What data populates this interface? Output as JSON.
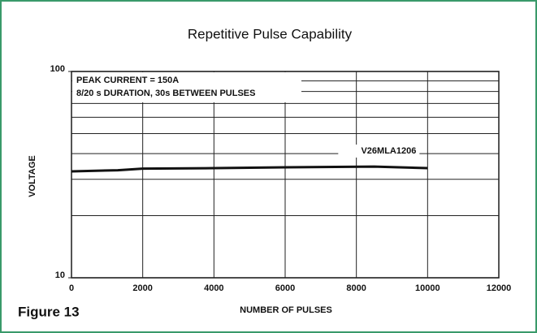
{
  "figure_label": "Figure 13",
  "chart_data": {
    "type": "line",
    "title": "Repetitive Pulse Capability",
    "x_label": "NUMBER OF PULSES",
    "y_label": "VOLTAGE",
    "annotations": [
      "PEAK CURRENT = 150A",
      "8/20  s DURATION, 30s BETWEEN PULSES"
    ],
    "xlim": [
      0,
      12000
    ],
    "xticks": [
      0,
      2000,
      4000,
      6000,
      8000,
      10000,
      12000
    ],
    "ylim": [
      10,
      100
    ],
    "yticks": [
      10,
      100
    ],
    "y_log": true,
    "y_minor_ticks": [
      20,
      30,
      40,
      50,
      60,
      70,
      80,
      90
    ],
    "grid": true,
    "x": [
      0,
      1300,
      2000,
      4000,
      6000,
      8500,
      10000
    ],
    "series": [
      {
        "name": "V26MLA1206",
        "color": "#111111",
        "values": [
          32.8,
          33.2,
          33.8,
          34.0,
          34.3,
          34.6,
          34.0
        ]
      }
    ]
  }
}
